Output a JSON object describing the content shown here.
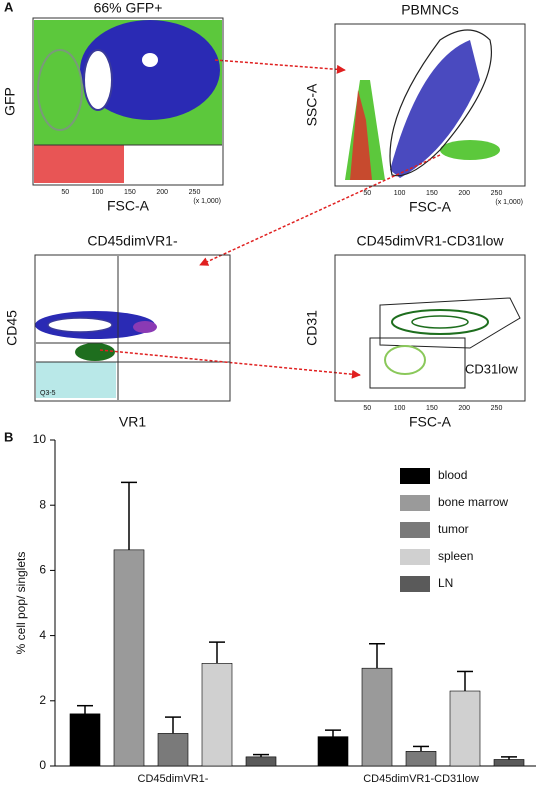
{
  "panel_a": {
    "label": "A",
    "plots": [
      {
        "title": "66% GFP+",
        "x_label": "FSC-A",
        "y_label": "GFP",
        "x_ticks": [
          "50",
          "100",
          "150",
          "200",
          "250"
        ],
        "x_unit": "(x 1,000)"
      },
      {
        "title": "PBMNCs",
        "x_label": "FSC-A",
        "y_label": "SSC-A",
        "x_ticks": [
          "50",
          "100",
          "150",
          "200",
          "250"
        ],
        "x_unit": "(x 1,000)"
      },
      {
        "title": "CD45dimVR1-",
        "x_label": "VR1",
        "y_label": "CD45",
        "gate_label": "Q3-5"
      },
      {
        "title": "CD45dimVR1-CD31low",
        "x_label": "FSC-A",
        "y_label": "CD31",
        "x_ticks": [
          "50",
          "100",
          "150",
          "200",
          "250"
        ],
        "gate_label": "CD31low"
      }
    ]
  },
  "chart_data": {
    "label": "B",
    "type": "bar",
    "y_label": "% cell pop/ singlets",
    "categories": [
      "CD45dimVR1-",
      "CD45dimVR1-CD31low"
    ],
    "series": [
      {
        "name": "blood",
        "color": "#000000",
        "values": [
          1.6,
          0.9
        ],
        "errors": [
          0.25,
          0.2
        ]
      },
      {
        "name": "bone marrow",
        "color": "#9a9a9a",
        "values": [
          6.63,
          3.0
        ],
        "errors": [
          2.07,
          0.75
        ]
      },
      {
        "name": "tumor",
        "color": "#7a7a7a",
        "values": [
          1.0,
          0.45
        ],
        "errors": [
          0.5,
          0.15
        ]
      },
      {
        "name": "spleen",
        "color": "#d0d0d0",
        "values": [
          3.15,
          2.3
        ],
        "errors": [
          0.65,
          0.6
        ]
      },
      {
        "name": "LN",
        "color": "#5a5a5a",
        "values": [
          0.28,
          0.2
        ],
        "errors": [
          0.07,
          0.08
        ]
      }
    ],
    "ylim": [
      0,
      10
    ],
    "yticks": [
      0,
      2,
      4,
      6,
      8,
      10
    ]
  }
}
